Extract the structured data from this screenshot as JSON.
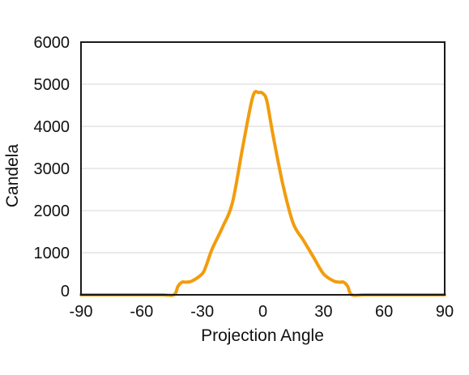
{
  "chart_data": {
    "type": "line",
    "title": "",
    "xlabel": "Projection Angle",
    "ylabel": "Candela",
    "xlim": [
      -90,
      90
    ],
    "ylim": [
      0,
      6000
    ],
    "x_ticks": [
      -90,
      -60,
      -30,
      0,
      30,
      60,
      90
    ],
    "y_ticks": [
      0,
      1000,
      2000,
      3000,
      4000,
      5000,
      6000
    ],
    "grid": "horizontal",
    "legend": "none",
    "series": [
      {
        "color": "#f29c0d",
        "x": [
          -90,
          -75,
          -60,
          -50,
          -44,
          -42,
          -40,
          -38,
          -35,
          -30,
          -28,
          -25,
          -20,
          -15,
          -10,
          -5,
          -2,
          0,
          2,
          5,
          10,
          15,
          20,
          25,
          30,
          35,
          38,
          40,
          42,
          44,
          50,
          60,
          75,
          90
        ],
        "y": [
          0,
          0,
          0,
          0,
          0,
          200,
          300,
          300,
          330,
          500,
          700,
          1100,
          1600,
          2200,
          3500,
          4700,
          4800,
          4780,
          4600,
          3800,
          2600,
          1700,
          1300,
          900,
          500,
          330,
          300,
          300,
          200,
          0,
          0,
          0,
          0,
          0
        ]
      }
    ]
  }
}
